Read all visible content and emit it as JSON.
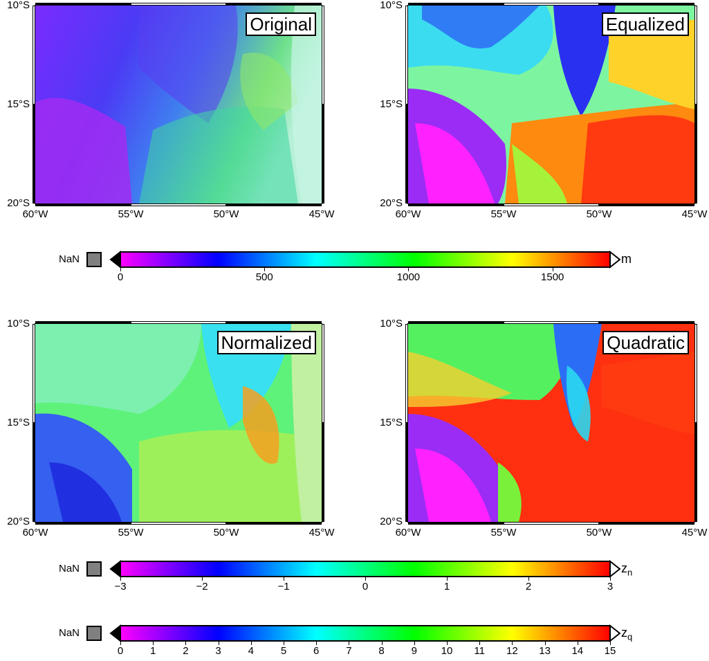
{
  "maps": [
    {
      "label": "Original",
      "style": "original"
    },
    {
      "label": "Equalized",
      "style": "equalized"
    },
    {
      "label": "Normalized",
      "style": "normalized"
    },
    {
      "label": "Quadratic",
      "style": "quadratic"
    }
  ],
  "lat_labels": [
    "10°S",
    "15°S",
    "20°S"
  ],
  "lon_labels": [
    "60°W",
    "55°W",
    "50°W",
    "45°W"
  ],
  "colorbars": [
    {
      "nan_label": "NaN",
      "unit": "m",
      "unit_sub": "",
      "ticks": [
        "0",
        "500",
        "1000",
        "1500"
      ],
      "range": [
        0,
        1700
      ],
      "tick_values": [
        0,
        500,
        1000,
        1500
      ]
    },
    {
      "nan_label": "NaN",
      "unit": "z",
      "unit_sub": "n",
      "ticks": [
        "−3",
        "−2",
        "−1",
        "0",
        "1",
        "2",
        "3"
      ],
      "range": [
        -3,
        3
      ],
      "tick_values": [
        -3,
        -2,
        -1,
        0,
        1,
        2,
        3
      ]
    },
    {
      "nan_label": "NaN",
      "unit": "z",
      "unit_sub": "q",
      "ticks": [
        "0",
        "1",
        "2",
        "3",
        "4",
        "5",
        "6",
        "7",
        "8",
        "9",
        "10",
        "11",
        "12",
        "13",
        "14",
        "15"
      ],
      "range": [
        0,
        15
      ],
      "tick_values": [
        0,
        1,
        2,
        3,
        4,
        5,
        6,
        7,
        8,
        9,
        10,
        11,
        12,
        13,
        14,
        15
      ]
    }
  ],
  "colors": {
    "cpt": [
      "#ff00ff",
      "#0000ff",
      "#00ffff",
      "#00ff00",
      "#ffff00",
      "#ff0000"
    ],
    "nan": "#808080",
    "frame": "#000000"
  }
}
